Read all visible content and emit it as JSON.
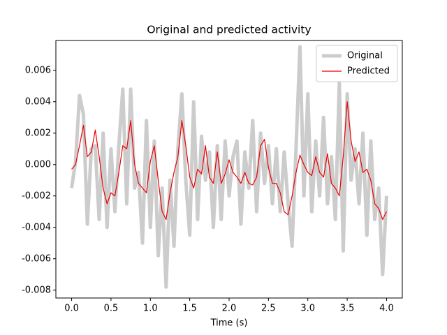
{
  "chart_data": {
    "type": "line",
    "title": "Original and predicted activity",
    "xlabel": "Time (s)",
    "x": [
      0,
      0.05,
      0.1,
      0.15,
      0.2,
      0.25,
      0.3,
      0.35,
      0.4,
      0.45,
      0.5,
      0.55,
      0.6,
      0.65,
      0.7,
      0.75,
      0.8,
      0.85,
      0.9,
      0.95,
      1,
      1.05,
      1.1,
      1.15,
      1.2,
      1.25,
      1.3,
      1.35,
      1.4,
      1.45,
      1.5,
      1.55,
      1.6,
      1.65,
      1.7,
      1.75,
      1.8,
      1.85,
      1.9,
      1.95,
      2,
      2.05,
      2.1,
      2.15,
      2.2,
      2.25,
      2.3,
      2.35,
      2.4,
      2.45,
      2.5,
      2.55,
      2.6,
      2.65,
      2.7,
      2.75,
      2.8,
      2.85,
      2.9,
      2.95,
      3,
      3.05,
      3.1,
      3.15,
      3.2,
      3.25,
      3.3,
      3.35,
      3.4,
      3.45,
      3.5,
      3.55,
      3.6,
      3.65,
      3.7,
      3.75,
      3.8,
      3.85,
      3.9,
      3.95,
      4
    ],
    "series": [
      {
        "name": "Original",
        "color": "#cccccc",
        "width": 5,
        "values": [
          -0.0015,
          0.0002,
          0.0044,
          0.0032,
          -0.0038,
          0.001,
          0.0012,
          -0.0035,
          0.002,
          -0.004,
          0.001,
          -0.003,
          0.0012,
          0.0048,
          -0.0025,
          0.0048,
          -0.0015,
          -0.0005,
          -0.005,
          0.0028,
          -0.004,
          0.0015,
          -0.0058,
          -0.0015,
          -0.0078,
          -0.001,
          -0.0052,
          0.001,
          0.0045,
          -0.001,
          -0.0045,
          0.004,
          -0.0035,
          0.0018,
          -0.001,
          0.0008,
          -0.004,
          0.0012,
          -0.0035,
          0.0015,
          -0.002,
          0.0005,
          0.0015,
          -0.0038,
          0.0008,
          -0.0015,
          0.0028,
          -0.003,
          0.002,
          -0.0012,
          0.0012,
          -0.0025,
          0.001,
          -0.003,
          0.0008,
          -0.0025,
          -0.0052,
          0.001,
          0.0075,
          -0.002,
          0.0045,
          -0.003,
          0.0015,
          -0.002,
          0.003,
          -0.0025,
          0.0005,
          -0.0035,
          0.0052,
          -0.0055,
          0.0045,
          -0.001,
          0.001,
          -0.0025,
          0.002,
          -0.0045,
          0.0015,
          -0.0035,
          -0.0015,
          -0.007,
          -0.002
        ]
      },
      {
        "name": "Predicted",
        "color": "#ee0000",
        "width": 1.2,
        "values": [
          -0.0003,
          0,
          0.0012,
          0.0025,
          0.0005,
          0.0008,
          0.0022,
          0.0005,
          -0.0015,
          -0.0025,
          -0.0018,
          -0.002,
          -0.0005,
          0.0012,
          0.001,
          0.0028,
          0,
          -0.0012,
          -0.0015,
          -0.0018,
          0.0002,
          0.0012,
          -0.001,
          -0.003,
          -0.0035,
          -0.0018,
          -0.0005,
          0.0005,
          0.0028,
          0.0012,
          -0.0008,
          -0.0015,
          -0.0003,
          -0.0006,
          0.0012,
          -0.0008,
          -0.0012,
          0.0008,
          -0.0012,
          -0.0006,
          0.0003,
          -0.0005,
          -0.0008,
          -0.0012,
          -0.0005,
          -0.0012,
          -0.0013,
          -0.0008,
          0.0012,
          0.0016,
          -0.0002,
          -0.0012,
          -0.0012,
          -0.0018,
          -0.003,
          -0.0032,
          -0.002,
          -0.0005,
          0.0006,
          0,
          -0.0005,
          -0.0007,
          0.0005,
          -0.0005,
          -0.0008,
          0.0007,
          -0.0012,
          -0.0015,
          -0.002,
          0.0005,
          0.004,
          0.0015,
          0.0002,
          0.0008,
          -0.0005,
          -0.0003,
          -0.001,
          -0.0025,
          -0.0028,
          -0.0035,
          -0.003
        ]
      }
    ],
    "xlim": [
      -0.2,
      4.2
    ],
    "ylim": [
      -0.0085,
      0.0079
    ],
    "xticks": [
      {
        "value": 0,
        "label": "0.0"
      },
      0.5,
      {
        "value": 1,
        "label": "1.0"
      },
      1.5,
      {
        "value": 2,
        "label": "2.0"
      },
      2.5,
      {
        "value": 3,
        "label": "3.0"
      },
      3.5,
      {
        "value": 4,
        "label": "4.0"
      }
    ],
    "yticks": [
      -0.008,
      -0.006,
      -0.004,
      -0.002,
      {
        "value": 0,
        "label": "0.000"
      },
      0.002,
      0.004,
      0.006
    ],
    "legend": "upper right"
  }
}
